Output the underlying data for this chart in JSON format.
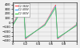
{
  "title": "",
  "xlabel": "",
  "ylabel": "",
  "xlim": [
    0,
    1.0
  ],
  "ylim": [
    -400,
    450
  ],
  "grid": true,
  "legend_labels": [
    "C2 360V",
    "C2 400V",
    "C2 440V"
  ],
  "legend_colors": [
    "#ff5555",
    "#44aaff",
    "#44cc44"
  ],
  "background_color": "#f0f0f0",
  "yticks": [
    -400,
    -300,
    -200,
    -100,
    0,
    100,
    200,
    300,
    400
  ],
  "xticks": [
    0.0,
    0.2,
    0.4,
    0.6,
    0.8,
    1.0
  ],
  "xtick_labels": [
    "0",
    "0.2",
    "0.4",
    "0.6",
    "0.8",
    "1"
  ],
  "v_offsets": [
    30,
    0,
    -30
  ]
}
